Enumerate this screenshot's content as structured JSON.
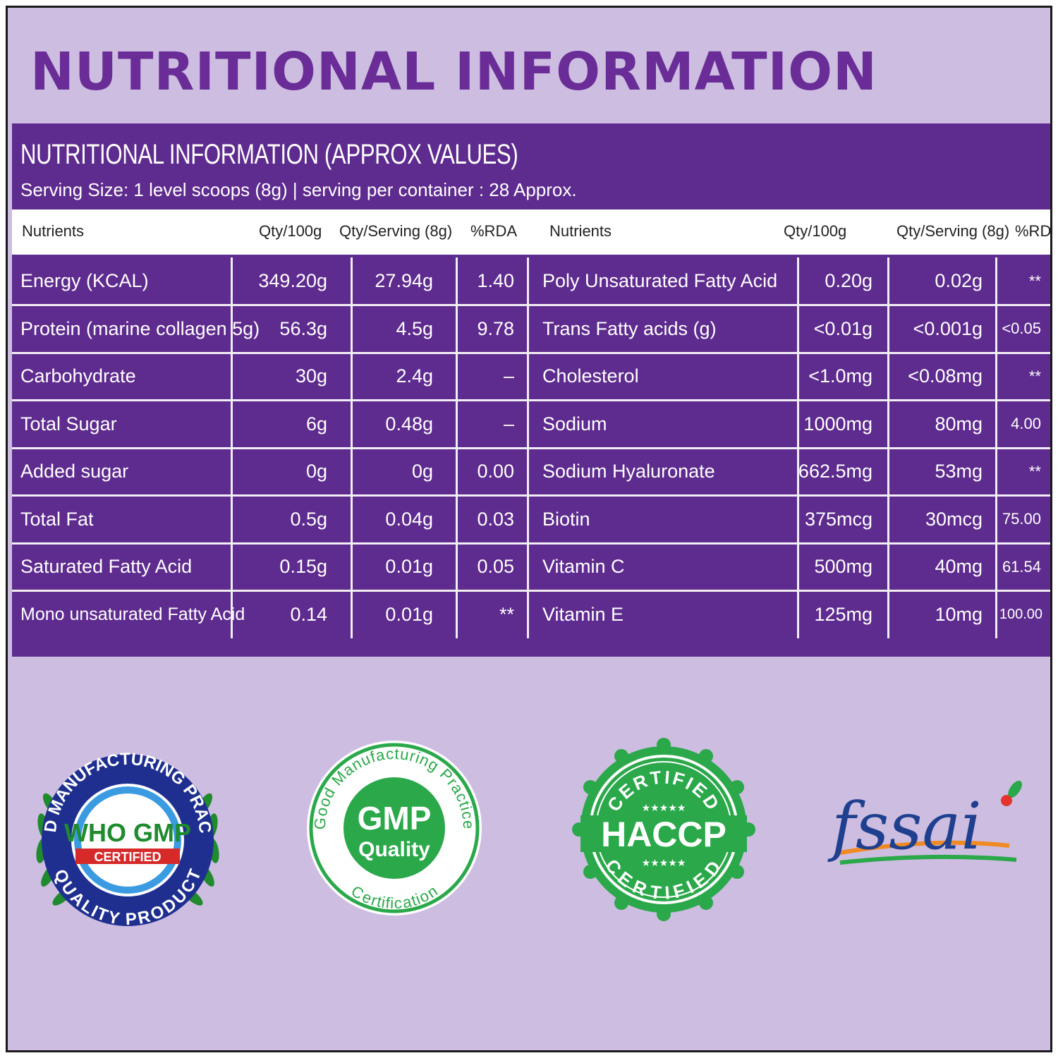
{
  "page": {
    "title": "NUTRITIONAL INFORMATION"
  },
  "panel": {
    "title": "NUTRITIONAL INFORMATION (APPROX VALUES)",
    "serving": "Serving Size: 1 level scoops (8g) | serving per container : 28 Approx.",
    "headers": {
      "left": [
        "Nutrients",
        "Qty/100g",
        "Qty/Serving (8g)",
        "%RDA"
      ],
      "right": [
        "Nutrients",
        "Qty/100g",
        "Qty/Serving (8g)",
        "%RDA"
      ]
    },
    "rows_left": [
      [
        "Energy (KCAL)",
        "349.20g",
        "27.94g",
        "1.40"
      ],
      [
        "Protein (marine collagen 5g)",
        "56.3g",
        "4.5g",
        "9.78"
      ],
      [
        "Carbohydrate",
        "30g",
        "2.4g",
        "–"
      ],
      [
        "Total Sugar",
        "6g",
        "0.48g",
        "–"
      ],
      [
        "Added sugar",
        "0g",
        "0g",
        "0.00"
      ],
      [
        "Total Fat",
        "0.5g",
        "0.04g",
        "0.03"
      ],
      [
        "Saturated Fatty Acid",
        "0.15g",
        "0.01g",
        "0.05"
      ],
      [
        "Mono unsaturated Fatty Acid",
        "0.14",
        "0.01g",
        "**"
      ]
    ],
    "rows_right": [
      [
        "Poly Unsaturated Fatty Acid",
        "0.20g",
        "0.02g",
        "**"
      ],
      [
        "Trans Fatty acids (g)",
        "<0.01g",
        "<0.001g",
        "<0.05"
      ],
      [
        "Cholesterol",
        "<1.0mg",
        "<0.08mg",
        "**"
      ],
      [
        "Sodium",
        "1000mg",
        "80mg",
        "4.00"
      ],
      [
        "Sodium Hyaluronate",
        "662.5mg",
        "53mg",
        "**"
      ],
      [
        "Biotin",
        "375mcg",
        "30mcg",
        "75.00"
      ],
      [
        "Vitamin C",
        "500mg",
        "40mg",
        "61.54"
      ],
      [
        "Vitamin E",
        "125mg",
        "10mg",
        "100.00"
      ]
    ]
  },
  "logos": {
    "who_gmp": {
      "center": "WHO GMP",
      "ribbon": "CERTIFIED",
      "ring_top": "GOOD MANUFACTURING PRACTICE",
      "ring_bottom": "QUALITY PRODUCT"
    },
    "gmp": {
      "center_top": "GMP",
      "center_bottom": "Quality",
      "ring_top": "Good Manufacturing Practice",
      "ring_bottom": "Certification"
    },
    "haccp": {
      "center": "HACCP",
      "top": "CERTIFIED",
      "bottom": "CERTIFIED",
      "stars": "★★★★★"
    },
    "fssai": {
      "text": "fssai"
    }
  },
  "colors": {
    "background": "#cdbde0",
    "panel": "#5e2b8e",
    "title": "#6a2d97",
    "green": "#1fa33b"
  }
}
